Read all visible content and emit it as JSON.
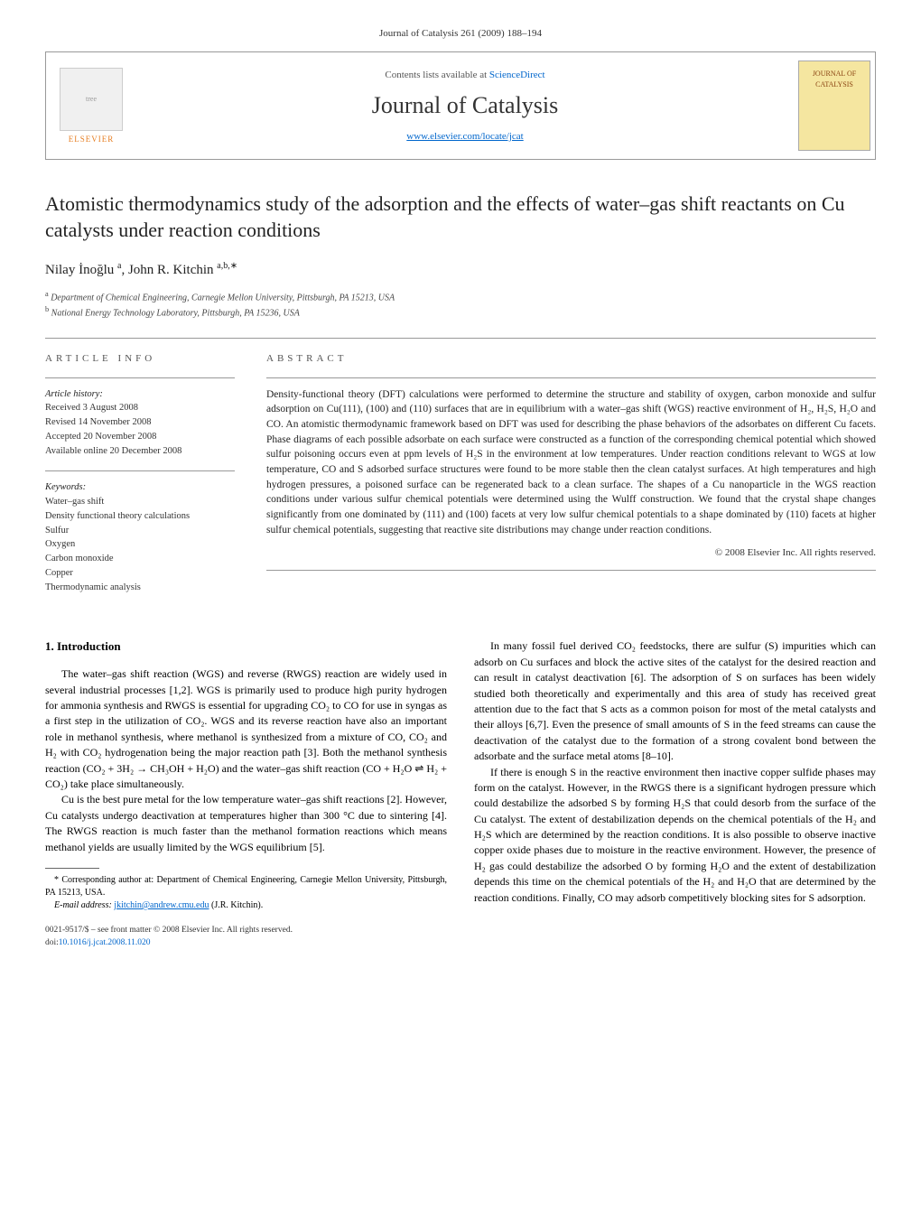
{
  "header": {
    "citation_line": "Journal of Catalysis 261 (2009) 188–194",
    "contents_prefix": "Contents lists available at ",
    "contents_link": "ScienceDirect",
    "journal_name": "Journal of Catalysis",
    "journal_url": "www.elsevier.com/locate/jcat",
    "publisher_name": "ELSEVIER",
    "right_logo_line1": "JOURNAL OF",
    "right_logo_line2": "CATALYSIS"
  },
  "article": {
    "title": "Atomistic thermodynamics study of the adsorption and the effects of water–gas shift reactants on Cu catalysts under reaction conditions",
    "authors_html": "Nilay İnoğlu <sup>a</sup>, John R. Kitchin <sup>a,b,∗</sup>",
    "affiliations": [
      {
        "sup": "a",
        "text": "Department of Chemical Engineering, Carnegie Mellon University, Pittsburgh, PA 15213, USA"
      },
      {
        "sup": "b",
        "text": "National Energy Technology Laboratory, Pittsburgh, PA 15236, USA"
      }
    ]
  },
  "info": {
    "section_label": "ARTICLE INFO",
    "history_head": "Article history:",
    "received": "Received 3 August 2008",
    "revised": "Revised 14 November 2008",
    "accepted": "Accepted 20 November 2008",
    "online": "Available online 20 December 2008",
    "keywords_head": "Keywords:",
    "keywords": [
      "Water–gas shift",
      "Density functional theory calculations",
      "Sulfur",
      "Oxygen",
      "Carbon monoxide",
      "Copper",
      "Thermodynamic analysis"
    ]
  },
  "abstract": {
    "section_label": "ABSTRACT",
    "text": "Density-functional theory (DFT) calculations were performed to determine the structure and stability of oxygen, carbon monoxide and sulfur adsorption on Cu(111), (100) and (110) surfaces that are in equilibrium with a water–gas shift (WGS) reactive environment of H₂, H₂S, H₂O and CO. An atomistic thermodynamic framework based on DFT was used for describing the phase behaviors of the adsorbates on different Cu facets. Phase diagrams of each possible adsorbate on each surface were constructed as a function of the corresponding chemical potential which showed sulfur poisoning occurs even at ppm levels of H₂S in the environment at low temperatures. Under reaction conditions relevant to WGS at low temperature, CO and S adsorbed surface structures were found to be more stable then the clean catalyst surfaces. At high temperatures and high hydrogen pressures, a poisoned surface can be regenerated back to a clean surface. The shapes of a Cu nanoparticle in the WGS reaction conditions under various sulfur chemical potentials were determined using the Wulff construction. We found that the crystal shape changes significantly from one dominated by (111) and (100) facets at very low sulfur chemical potentials to a shape dominated by (110) facets at higher sulfur chemical potentials, suggesting that reactive site distributions may change under reaction conditions.",
    "copyright": "© 2008 Elsevier Inc. All rights reserved."
  },
  "body": {
    "intro_heading": "1. Introduction",
    "p1": "The water–gas shift reaction (WGS) and reverse (RWGS) reaction are widely used in several industrial processes [1,2]. WGS is primarily used to produce high purity hydrogen for ammonia synthesis and RWGS is essential for upgrading CO₂ to CO for use in syngas as a first step in the utilization of CO₂. WGS and its reverse reaction have also an important role in methanol synthesis, where methanol is synthesized from a mixture of CO, CO₂ and H₂ with CO₂ hydrogenation being the major reaction path [3]. Both the methanol synthesis reaction (CO₂ + 3H₂ → CH₃OH + H₂O) and the water–gas shift reaction (CO + H₂O ⇌ H₂ + CO₂) take place simultaneously.",
    "p2": "Cu is the best pure metal for the low temperature water–gas shift reactions [2]. However, Cu catalysts undergo deactivation at temperatures higher than 300 °C due to sintering [4]. The RWGS reaction is much faster than the methanol formation reactions which means methanol yields are usually limited by the WGS equilibrium [5].",
    "p3": "In many fossil fuel derived CO₂ feedstocks, there are sulfur (S) impurities which can adsorb on Cu surfaces and block the active sites of the catalyst for the desired reaction and can result in catalyst deactivation [6]. The adsorption of S on surfaces has been widely studied both theoretically and experimentally and this area of study has received great attention due to the fact that S acts as a common poison for most of the metal catalysts and their alloys [6,7]. Even the presence of small amounts of S in the feed streams can cause the deactivation of the catalyst due to the formation of a strong covalent bond between the adsorbate and the surface metal atoms [8–10].",
    "p4": "If there is enough S in the reactive environment then inactive copper sulfide phases may form on the catalyst. However, in the RWGS there is a significant hydrogen pressure which could destabilize the adsorbed S by forming H₂S that could desorb from the surface of the Cu catalyst. The extent of destabilization depends on the chemical potentials of the H₂ and H₂S which are determined by the reaction conditions. It is also possible to observe inactive copper oxide phases due to moisture in the reactive environment. However, the presence of H₂ gas could destabilize the adsorbed O by forming H₂O and the extent of destabilization depends this time on the chemical potentials of the H₂ and H₂O that are determined by the reaction conditions. Finally, CO may adsorb competitively blocking sites for S adsorption."
  },
  "footnotes": {
    "corresponding": "Corresponding author at: Department of Chemical Engineering, Carnegie Mellon University, Pittsburgh, PA 15213, USA.",
    "email_label": "E-mail address:",
    "email": "jkitchin@andrew.cmu.edu",
    "email_suffix": "(J.R. Kitchin)."
  },
  "bottom": {
    "issn_line": "0021-9517/$ – see front matter © 2008 Elsevier Inc. All rights reserved.",
    "doi_label": "doi:",
    "doi": "10.1016/j.jcat.2008.11.020"
  },
  "colors": {
    "link": "#0066cc",
    "elsevier_orange": "#e67e22",
    "catalysis_bg": "#f5e6a0",
    "border": "#999999"
  }
}
